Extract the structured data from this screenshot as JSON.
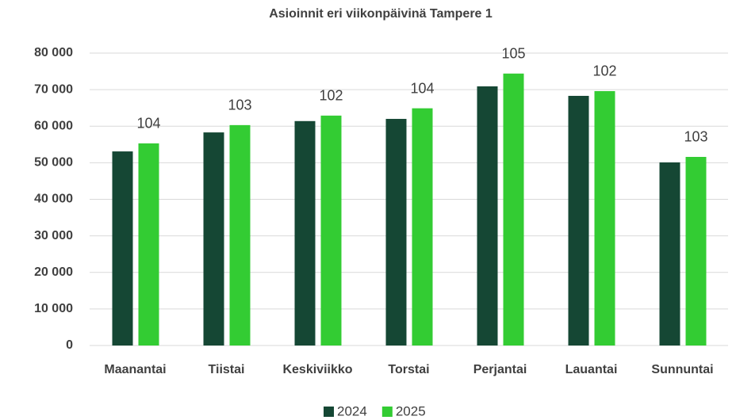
{
  "chart_data": {
    "type": "bar",
    "title": "Asioinnit eri viikonpäivinä Tampere 1",
    "categories": [
      "Maanantai",
      "Tiistai",
      "Keskiviikko",
      "Torstai",
      "Perjantai",
      "Lauantai",
      "Sunnuntai"
    ],
    "series": [
      {
        "name": "2024",
        "color": "#154734",
        "values": [
          53100,
          58300,
          61400,
          62000,
          70900,
          68300,
          50100
        ]
      },
      {
        "name": "2025",
        "color": "#33cc33",
        "values": [
          55300,
          60300,
          62900,
          64900,
          74400,
          69600,
          51600
        ]
      }
    ],
    "annotations": [
      104,
      103,
      102,
      104,
      105,
      102,
      103
    ],
    "ylim": [
      0,
      80000
    ],
    "yticks": [
      0,
      {
        "value": 10000,
        "label": "10 000"
      },
      {
        "value": 20000,
        "label": "20 000"
      },
      {
        "value": 30000,
        "label": "30 000"
      },
      {
        "value": 40000,
        "label": "40 000"
      },
      {
        "value": 50000,
        "label": "50 000"
      },
      {
        "value": 60000,
        "label": "60 000"
      },
      {
        "value": 70000,
        "label": "70 000"
      },
      {
        "value": 80000,
        "label": "80 000"
      }
    ],
    "grid": true,
    "legend": "bottom"
  }
}
